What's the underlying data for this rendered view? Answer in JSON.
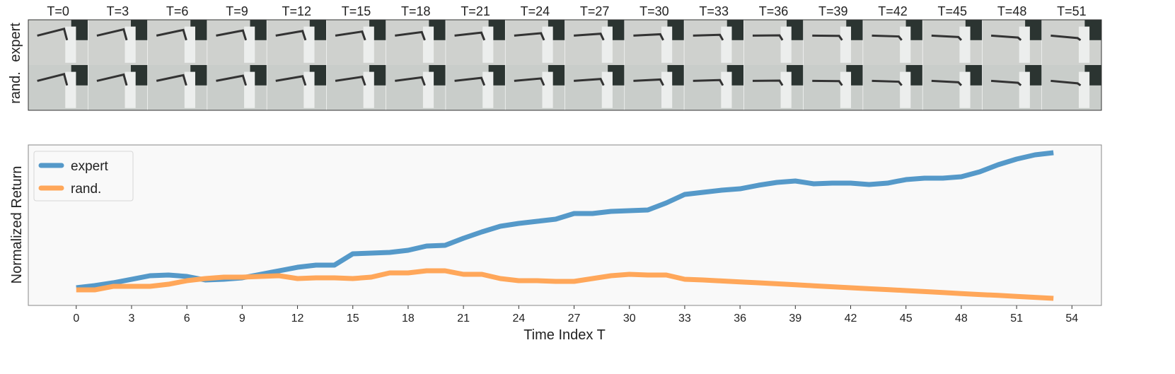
{
  "frames": {
    "labels": [
      "T=0",
      "T=3",
      "T=6",
      "T=9",
      "T=12",
      "T=15",
      "T=18",
      "T=21",
      "T=24",
      "T=27",
      "T=30",
      "T=33",
      "T=36",
      "T=39",
      "T=42",
      "T=45",
      "T=48",
      "T=51"
    ],
    "rows": [
      "expert",
      "rand."
    ]
  },
  "chart_data": {
    "type": "line",
    "title": "",
    "xlabel": "Time Index T",
    "ylabel": "Normalized Return",
    "xlim": [
      -2.6,
      55.6
    ],
    "ylim": [
      -0.06,
      1.075
    ],
    "xticks": [
      0,
      3,
      6,
      9,
      12,
      15,
      18,
      21,
      24,
      27,
      30,
      33,
      36,
      39,
      42,
      45,
      48,
      51,
      54
    ],
    "grid": false,
    "legend_position": "top-left",
    "x": [
      0,
      1,
      2,
      3,
      4,
      5,
      6,
      7,
      8,
      9,
      10,
      11,
      12,
      13,
      14,
      15,
      16,
      17,
      18,
      19,
      20,
      21,
      22,
      23,
      24,
      25,
      26,
      27,
      28,
      29,
      30,
      31,
      32,
      33,
      34,
      35,
      36,
      37,
      38,
      39,
      40,
      41,
      42,
      43,
      44,
      45,
      46,
      47,
      48,
      49,
      50,
      51,
      52,
      53
    ],
    "series": [
      {
        "name": "expert",
        "color": "#5599c9",
        "values": [
          0.065,
          0.08,
          0.1,
          0.125,
          0.15,
          0.155,
          0.145,
          0.12,
          0.125,
          0.135,
          0.16,
          0.185,
          0.21,
          0.225,
          0.225,
          0.305,
          0.31,
          0.315,
          0.33,
          0.36,
          0.365,
          0.415,
          0.46,
          0.5,
          0.52,
          0.535,
          0.55,
          0.59,
          0.59,
          0.605,
          0.61,
          0.615,
          0.665,
          0.725,
          0.74,
          0.755,
          0.765,
          0.79,
          0.81,
          0.82,
          0.8,
          0.805,
          0.805,
          0.795,
          0.805,
          0.83,
          0.84,
          0.84,
          0.85,
          0.885,
          0.935,
          0.975,
          1.005,
          1.02
        ]
      },
      {
        "name": "rand.",
        "color": "#ffa75a",
        "values": [
          0.05,
          0.05,
          0.075,
          0.075,
          0.075,
          0.09,
          0.115,
          0.13,
          0.14,
          0.14,
          0.145,
          0.15,
          0.13,
          0.135,
          0.135,
          0.13,
          0.14,
          0.17,
          0.17,
          0.185,
          0.185,
          0.16,
          0.16,
          0.13,
          0.115,
          0.115,
          0.11,
          0.11,
          0.13,
          0.15,
          0.16,
          0.155,
          0.155,
          0.125,
          0.12,
          0.113,
          0.106,
          0.1,
          0.093,
          0.086,
          0.079,
          0.072,
          0.065,
          0.058,
          0.052,
          0.045,
          0.038,
          0.031,
          0.024,
          0.017,
          0.011,
          0.004,
          -0.003,
          -0.01
        ]
      }
    ]
  }
}
